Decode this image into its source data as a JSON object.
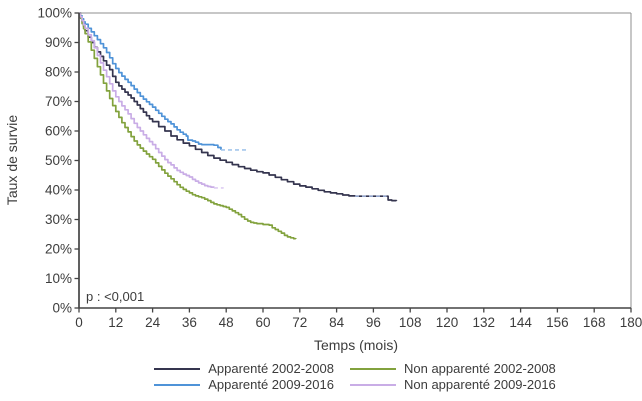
{
  "chart_data": {
    "type": "line",
    "subtype": "kaplan-meier-step",
    "title": "",
    "xlabel": "Temps (mois)",
    "ylabel": "Taux de survie",
    "annotation": "p : <0,001",
    "xlim": [
      0,
      180
    ],
    "ylim": [
      0,
      100
    ],
    "x_ticks": [
      "0",
      "12",
      "24",
      "36",
      "48",
      "60",
      "72",
      "84",
      "96",
      "108",
      "120",
      "132",
      "144",
      "156",
      "168",
      "180"
    ],
    "x_tick_values": [
      0,
      12,
      24,
      36,
      48,
      60,
      72,
      84,
      96,
      108,
      120,
      132,
      144,
      156,
      168,
      180
    ],
    "y_ticks": [
      "0%",
      "10%",
      "20%",
      "30%",
      "40%",
      "50%",
      "60%",
      "70%",
      "80%",
      "90%",
      "100%"
    ],
    "y_tick_values": [
      0,
      10,
      20,
      30,
      40,
      50,
      60,
      70,
      80,
      90,
      100
    ],
    "grid": false,
    "legend_position": "bottom",
    "frame_color": "#8f8f8f",
    "axis_color": "#444444",
    "text_color": "#3c3c3c",
    "series": [
      {
        "name": "Apparenté 2002-2008",
        "color": "#35354f",
        "tail_color": "#9fb4dd",
        "segments": [
          {
            "style": "solid",
            "points": [
              [
                0,
                100
              ],
              [
                0.5,
                98.5
              ],
              [
                1,
                97
              ],
              [
                1.5,
                95.5
              ],
              [
                2,
                94
              ],
              [
                3,
                91.8
              ],
              [
                4,
                90
              ],
              [
                5,
                88.3
              ],
              [
                6,
                86.8
              ],
              [
                7,
                85.3
              ],
              [
                8,
                83.8
              ],
              [
                9,
                82.3
              ],
              [
                10,
                80.8
              ],
              [
                11,
                78.5
              ],
              [
                12,
                76.5
              ],
              [
                13,
                75.3
              ],
              [
                14,
                74.2
              ],
              [
                15,
                73.2
              ],
              [
                16,
                72.2
              ],
              [
                17,
                71.2
              ],
              [
                18,
                70
              ],
              [
                19,
                68.8
              ],
              [
                20,
                67.6
              ],
              [
                21,
                66.4
              ],
              [
                22,
                65.2
              ],
              [
                23,
                64.1
              ],
              [
                24,
                63.2
              ],
              [
                26,
                61.5
              ],
              [
                28,
                60
              ],
              [
                30,
                58.3
              ],
              [
                32,
                57
              ],
              [
                34,
                55.9
              ],
              [
                36,
                55
              ],
              [
                38,
                53.8
              ],
              [
                40,
                52.7
              ],
              [
                42,
                51.7
              ],
              [
                44,
                50.8
              ],
              [
                46,
                50.1
              ],
              [
                48,
                49.4
              ],
              [
                50,
                48.6
              ],
              [
                52,
                47.9
              ],
              [
                54,
                47.3
              ],
              [
                56,
                46.7
              ],
              [
                58,
                46.2
              ],
              [
                60,
                45.8
              ],
              [
                62,
                45.1
              ],
              [
                64,
                44.3
              ],
              [
                66,
                43.5
              ],
              [
                68,
                42.8
              ],
              [
                70,
                42
              ],
              [
                72,
                41.4
              ],
              [
                74,
                41
              ],
              [
                76,
                40.4
              ],
              [
                78,
                39.9
              ],
              [
                80,
                39.4
              ],
              [
                82,
                39
              ],
              [
                84,
                38.7
              ],
              [
                86,
                38.3
              ],
              [
                88,
                38
              ],
              [
                90,
                37.9
              ]
            ]
          },
          {
            "style": "dashed-overlay",
            "points": [
              [
                90,
                37.9
              ],
              [
                100.3,
                37.9
              ]
            ]
          },
          {
            "style": "solid",
            "points": [
              [
                100.3,
                37.9
              ],
              [
                100.8,
                36.6
              ],
              [
                102,
                36.4
              ],
              [
                103.5,
                36.3
              ]
            ]
          }
        ]
      },
      {
        "name": "Apparenté 2009-2016",
        "color": "#4f93d8",
        "tail_color": "#a3c6ec",
        "segments": [
          {
            "style": "solid",
            "points": [
              [
                0,
                100
              ],
              [
                0.5,
                99
              ],
              [
                1,
                98
              ],
              [
                1.5,
                97
              ],
              [
                2,
                96.2
              ],
              [
                3,
                94.8
              ],
              [
                4,
                93.6
              ],
              [
                5,
                92.3
              ],
              [
                6,
                91
              ],
              [
                7,
                89.6
              ],
              [
                8,
                88.2
              ],
              [
                9,
                86.6
              ],
              [
                10,
                84.8
              ],
              [
                11,
                82.8
              ],
              [
                12,
                81.2
              ],
              [
                13,
                79.8
              ],
              [
                14,
                78.6
              ],
              [
                15,
                77.5
              ],
              [
                16,
                76.5
              ],
              [
                17,
                75.4
              ],
              [
                18,
                74.2
              ],
              [
                19,
                73
              ],
              [
                20,
                71.8
              ],
              [
                21,
                70.8
              ],
              [
                22,
                69.9
              ],
              [
                23,
                69
              ],
              [
                24,
                68.1
              ],
              [
                25,
                67
              ],
              [
                26,
                66
              ],
              [
                27,
                65
              ],
              [
                28,
                64
              ],
              [
                29,
                63.2
              ],
              [
                30,
                62.4
              ],
              [
                31,
                61.4
              ],
              [
                32,
                60.4
              ],
              [
                33,
                59.6
              ],
              [
                34,
                58.9
              ],
              [
                35,
                58.3
              ],
              [
                35.5,
                56.9
              ],
              [
                37,
                56.6
              ],
              [
                38,
                56.2
              ],
              [
                39,
                55.6
              ],
              [
                40,
                55.4
              ],
              [
                44,
                55.2
              ],
              [
                45.3,
                54.4
              ],
              [
                46.3,
                53.6
              ]
            ]
          },
          {
            "style": "dashed",
            "points": [
              [
                46.3,
                53.6
              ],
              [
                55.2,
                53.6
              ]
            ]
          }
        ]
      },
      {
        "name": "Non apparenté 2002-2008",
        "color": "#82a23d",
        "tail_color": "#bccd8e",
        "segments": [
          {
            "style": "solid",
            "points": [
              [
                0,
                100
              ],
              [
                0.5,
                98.2
              ],
              [
                1,
                96.4
              ],
              [
                1.5,
                94.7
              ],
              [
                2,
                93
              ],
              [
                3,
                90.2
              ],
              [
                4,
                87.4
              ],
              [
                5,
                84.6
              ],
              [
                6,
                81.8
              ],
              [
                7,
                79
              ],
              [
                8,
                76.2
              ],
              [
                9,
                73.6
              ],
              [
                10,
                71
              ],
              [
                11,
                68.6
              ],
              [
                12,
                66.6
              ],
              [
                13,
                64.6
              ],
              [
                14,
                62.8
              ],
              [
                15,
                61.2
              ],
              [
                16,
                59.7
              ],
              [
                17,
                58.1
              ],
              [
                18,
                56.6
              ],
              [
                19,
                55.3
              ],
              [
                20,
                54.2
              ],
              [
                21,
                53.2
              ],
              [
                22,
                52.2
              ],
              [
                23,
                51.3
              ],
              [
                24,
                50.4
              ],
              [
                25,
                49.2
              ],
              [
                26,
                48
              ],
              [
                27,
                46.8
              ],
              [
                28,
                45.7
              ],
              [
                29,
                44.7
              ],
              [
                30,
                43.8
              ],
              [
                31,
                42.8
              ],
              [
                32,
                41.8
              ],
              [
                33,
                40.9
              ],
              [
                34,
                40.2
              ],
              [
                35,
                39.6
              ],
              [
                36,
                39
              ],
              [
                37,
                38.4
              ],
              [
                38,
                38
              ],
              [
                39,
                37.7
              ],
              [
                40,
                37.4
              ],
              [
                41,
                36.9
              ],
              [
                42,
                36.4
              ],
              [
                43,
                35.8
              ],
              [
                44,
                35.3
              ],
              [
                45,
                35
              ],
              [
                46,
                34.7
              ],
              [
                47,
                34.4
              ],
              [
                48,
                34.1
              ],
              [
                49,
                33.5
              ],
              [
                50,
                32.9
              ],
              [
                51,
                32.3
              ],
              [
                52,
                31.7
              ],
              [
                53,
                30.9
              ],
              [
                54,
                30.1
              ],
              [
                55,
                29.5
              ],
              [
                56,
                29
              ],
              [
                57,
                28.8
              ],
              [
                58,
                28.6
              ],
              [
                60,
                28.3
              ],
              [
                62,
                28.1
              ],
              [
                63,
                27.2
              ],
              [
                64,
                26.6
              ],
              [
                65,
                26
              ],
              [
                66,
                25.4
              ],
              [
                67,
                24.6
              ],
              [
                68,
                24.1
              ],
              [
                69,
                23.8
              ],
              [
                70,
                23.5
              ],
              [
                70.7,
                23.4
              ]
            ]
          }
        ]
      },
      {
        "name": "Non apparenté 2009-2016",
        "color": "#c9ade6",
        "tail_color": "#ddccf2",
        "segments": [
          {
            "style": "solid",
            "points": [
              [
                0,
                100
              ],
              [
                0.5,
                98.7
              ],
              [
                1,
                97.4
              ],
              [
                1.5,
                96
              ],
              [
                2,
                94.8
              ],
              [
                3,
                92.6
              ],
              [
                4,
                90.6
              ],
              [
                5,
                88.2
              ],
              [
                6,
                85.6
              ],
              [
                7,
                83.1
              ],
              [
                8,
                80.6
              ],
              [
                9,
                78.4
              ],
              [
                10,
                76
              ],
              [
                11,
                73.6
              ],
              [
                12,
                71.6
              ],
              [
                13,
                70
              ],
              [
                14,
                68.5
              ],
              [
                15,
                67.2
              ],
              [
                16,
                65.8
              ],
              [
                17,
                64.2
              ],
              [
                18,
                62.6
              ],
              [
                19,
                61.2
              ],
              [
                20,
                60
              ],
              [
                21,
                58.7
              ],
              [
                22,
                57.5
              ],
              [
                23,
                56.4
              ],
              [
                24,
                55.4
              ],
              [
                25,
                54
              ],
              [
                26,
                52.7
              ],
              [
                27,
                51.5
              ],
              [
                28,
                50.3
              ],
              [
                29,
                49.3
              ],
              [
                30,
                48.5
              ],
              [
                31,
                47.5
              ],
              [
                32,
                46.6
              ],
              [
                33,
                46
              ],
              [
                34,
                45.4
              ],
              [
                35,
                44.9
              ],
              [
                36,
                44.4
              ],
              [
                37,
                43.6
              ],
              [
                38,
                43
              ],
              [
                39,
                42.4
              ],
              [
                40,
                42
              ],
              [
                41,
                41.5
              ],
              [
                42,
                41.2
              ],
              [
                43,
                41
              ],
              [
                44,
                40.7
              ]
            ]
          },
          {
            "style": "dashed",
            "points": [
              [
                44,
                40.7
              ],
              [
                47,
                40.5
              ]
            ]
          }
        ]
      }
    ]
  }
}
